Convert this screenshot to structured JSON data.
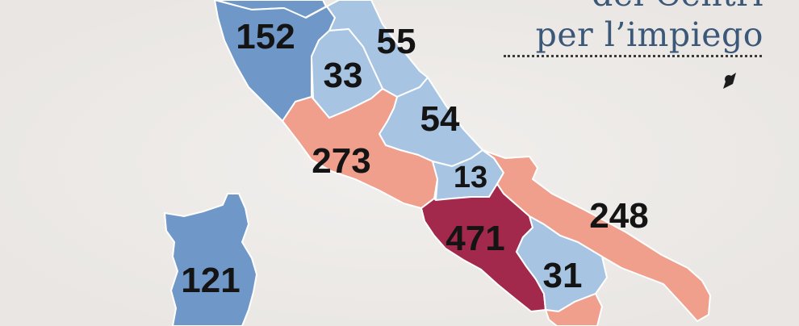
{
  "title": {
    "line1": "dei Centri",
    "line2": "per l’impiego"
  },
  "colors": {
    "background": "#eeecea",
    "low_dark": "#6f97c8",
    "low_light": "#a7c5e2",
    "high_salmon": "#ef9f8c",
    "highest": "#a3294c",
    "border": "#ffffff",
    "title_text": "#3c5879",
    "value_text": "#141414"
  },
  "regions": [
    {
      "id": "region-toscana",
      "value": "152",
      "fill": "#6f97c8"
    },
    {
      "id": "region-marche",
      "value": "55",
      "fill": "#a7c5e2"
    },
    {
      "id": "region-umbria",
      "value": "33",
      "fill": "#a7c5e2"
    },
    {
      "id": "region-abruzzo",
      "value": "54",
      "fill": "#a7c5e2"
    },
    {
      "id": "region-lazio",
      "value": "273",
      "fill": "#ef9f8c"
    },
    {
      "id": "region-molise",
      "value": "13",
      "fill": "#a7c5e2"
    },
    {
      "id": "region-campania",
      "value": "471",
      "fill": "#a3294c"
    },
    {
      "id": "region-puglia",
      "value": "248",
      "fill": "#ef9f8c"
    },
    {
      "id": "region-basilicata",
      "value": "31",
      "fill": "#a7c5e2"
    },
    {
      "id": "region-sardegna",
      "value": "121",
      "fill": "#6f97c8"
    },
    {
      "id": "region-calabria",
      "value": "",
      "fill": "#ef9f8c"
    }
  ]
}
